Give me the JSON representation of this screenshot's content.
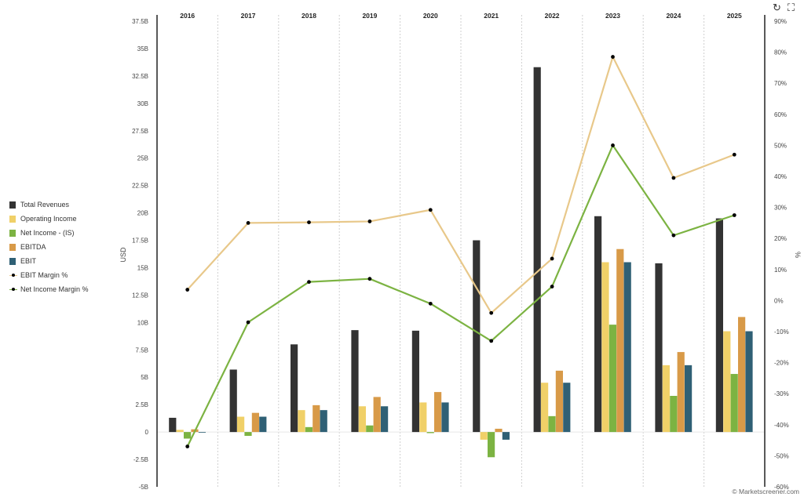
{
  "chart_data": {
    "type": "bar",
    "categories": [
      "2016",
      "2017",
      "2018",
      "2019",
      "2020",
      "2021",
      "2022",
      "2023",
      "2024",
      "2025"
    ],
    "ylabel": "USD",
    "y2label": "%",
    "ylim": [
      -5,
      37.5
    ],
    "y2lim": [
      -60,
      90
    ],
    "y_ticks": [
      "-5B",
      "-2.5B",
      "0",
      "2.5B",
      "5B",
      "7.5B",
      "10B",
      "12.5B",
      "15B",
      "17.5B",
      "20B",
      "22.5B",
      "25B",
      "27.5B",
      "30B",
      "32.5B",
      "35B",
      "37.5B"
    ],
    "y2_ticks": [
      "-60%",
      "-50%",
      "-40%",
      "-30%",
      "-20%",
      "-10%",
      "0%",
      "10%",
      "20%",
      "30%",
      "40%",
      "50%",
      "60%",
      "70%",
      "80%",
      "90%"
    ],
    "grid": "vertical dashed",
    "legend_position": "left",
    "series": [
      {
        "name": "Total Revenues",
        "kind": "bar",
        "color": "#333333",
        "values": [
          1.3,
          5.7,
          8.0,
          9.3,
          9.25,
          17.5,
          33.3,
          19.7,
          15.4,
          19.5
        ]
      },
      {
        "name": "Operating Income",
        "kind": "bar",
        "color": "#f0d068",
        "values": [
          0.2,
          1.4,
          2.0,
          2.35,
          2.7,
          -0.7,
          4.5,
          15.5,
          6.1,
          9.2
        ]
      },
      {
        "name": "Net Income - (IS)",
        "kind": "bar",
        "color": "#7cb342",
        "values": [
          -0.6,
          -0.35,
          0.45,
          0.6,
          -0.1,
          -2.3,
          1.45,
          9.8,
          3.3,
          5.3
        ]
      },
      {
        "name": "EBITDA",
        "kind": "bar",
        "color": "#d89a48",
        "values": [
          0.25,
          1.75,
          2.45,
          3.2,
          3.65,
          0.3,
          5.6,
          16.7,
          7.3,
          10.5
        ]
      },
      {
        "name": "EBIT",
        "kind": "bar",
        "color": "#2f6075",
        "values": [
          -0.05,
          1.4,
          2.0,
          2.35,
          2.7,
          -0.7,
          4.5,
          15.5,
          6.1,
          9.2
        ]
      },
      {
        "name": "EBIT Margin %",
        "kind": "line",
        "axis": "right",
        "color": "#e8c88a",
        "values": [
          3.5,
          25,
          25.2,
          25.5,
          29.2,
          -4,
          13.5,
          78.5,
          39.5,
          47
        ]
      },
      {
        "name": "Net Income Margin %",
        "kind": "line",
        "axis": "right",
        "color": "#7cb342",
        "values": [
          -47,
          -7,
          6,
          7,
          -1,
          -13,
          4.5,
          50,
          21,
          27.5
        ]
      }
    ]
  },
  "toolbar": {
    "reset_icon": "refresh-icon",
    "fullscreen_icon": "fullscreen-icon"
  },
  "credit": "© Marketscreener.com"
}
